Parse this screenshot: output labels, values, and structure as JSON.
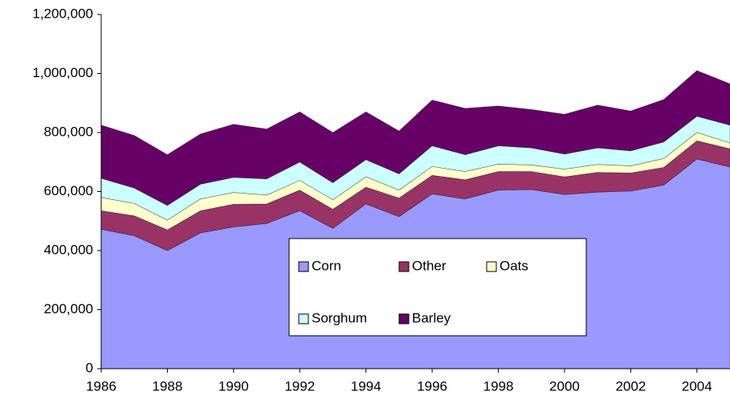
{
  "chart_data": {
    "type": "stacked_area",
    "x": [
      1986,
      1987,
      1988,
      1989,
      1990,
      1991,
      1992,
      1993,
      1994,
      1995,
      1996,
      1997,
      1998,
      1999,
      2000,
      2001,
      2002,
      2003,
      2004,
      2005
    ],
    "series": [
      {
        "name": "Corn",
        "color": "#9999ff",
        "values": [
          472000,
          450000,
          400000,
          460000,
          480000,
          492000,
          535000,
          475000,
          558000,
          515000,
          592000,
          575000,
          605000,
          607000,
          590000,
          598000,
          602000,
          622000,
          710000,
          683000
        ]
      },
      {
        "name": "Other",
        "color": "#993366",
        "values": [
          63000,
          68000,
          70000,
          75000,
          77000,
          66000,
          70000,
          65000,
          57000,
          63000,
          63000,
          65000,
          63000,
          61000,
          60000,
          67000,
          61000,
          60000,
          62000,
          62000
        ]
      },
      {
        "name": "Oats",
        "color": "#ffffcc",
        "values": [
          45000,
          42000,
          33000,
          40000,
          40000,
          30000,
          33000,
          32000,
          35000,
          27000,
          30000,
          28000,
          25000,
          22000,
          26000,
          27000,
          24000,
          30000,
          28000,
          20000
        ]
      },
      {
        "name": "Sorghum",
        "color": "#ccffff",
        "values": [
          65000,
          52000,
          50000,
          50000,
          51000,
          55000,
          62000,
          58000,
          58000,
          55000,
          70000,
          57000,
          62000,
          58000,
          51000,
          56000,
          51000,
          56000,
          55000,
          60000
        ]
      },
      {
        "name": "Barley",
        "color": "#660066",
        "values": [
          180000,
          178000,
          172000,
          170000,
          180000,
          169000,
          170000,
          170000,
          162000,
          145000,
          155000,
          157000,
          135000,
          130000,
          135000,
          145000,
          135000,
          144000,
          155000,
          140000
        ]
      }
    ],
    "xlim": [
      1986,
      2005
    ],
    "xticks": [
      1986,
      1988,
      1990,
      1992,
      1994,
      1996,
      1998,
      2000,
      2002,
      2004
    ],
    "ylim": [
      0,
      1200000
    ],
    "yticks": [
      0,
      {
        "value": 200000,
        "label": "200,000"
      },
      {
        "value": 400000,
        "label": "400,000"
      },
      {
        "value": 600000,
        "label": "600,000"
      },
      {
        "value": 800000,
        "label": "800,000"
      },
      {
        "value": 1000000,
        "label": "1,000,000"
      },
      {
        "value": 1200000,
        "label": "1,200,000"
      }
    ],
    "grid": false
  }
}
